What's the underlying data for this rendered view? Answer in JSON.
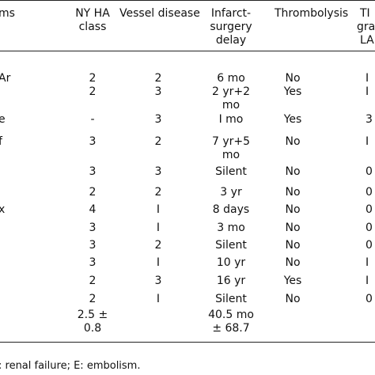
{
  "header": {
    "col0": "ms",
    "col1": [
      "NY HA",
      "class"
    ],
    "col2": "Vessel disease",
    "col3": [
      "Infarct-",
      "surgery",
      "delay"
    ],
    "col4": "Thrombolysis",
    "col5": [
      "TI",
      "gra",
      "LA"
    ]
  },
  "rows": [
    {
      "c0": "Ar",
      "c1": "2",
      "c2": "2",
      "c3": [
        "6 mo"
      ],
      "c4": "No",
      "c5": "I"
    },
    {
      "c0": "",
      "c1": "2",
      "c2": "3",
      "c3": [
        "2 yr+2",
        "mo"
      ],
      "c4": "Yes",
      "c5": "I"
    },
    {
      "c0": "e",
      "c1": "-",
      "c2": "3",
      "c3": [
        "I mo"
      ],
      "c4": "Yes",
      "c5": "3"
    },
    {
      "c0": "f",
      "c1": "3",
      "c2": "2",
      "c3": [
        "7 yr+5",
        "mo"
      ],
      "c4": "No",
      "c5": "I"
    },
    {
      "c0": "",
      "c1": "3",
      "c2": "3",
      "c3": [
        "Silent"
      ],
      "c4": "No",
      "c5": "0"
    },
    {
      "c0": "",
      "c1": "2",
      "c2": "2",
      "c3": [
        "3 yr"
      ],
      "c4": "No",
      "c5": "0"
    },
    {
      "c0": "x",
      "c1": "4",
      "c2": "I",
      "c3": [
        "8 days"
      ],
      "c4": "No",
      "c5": "0"
    },
    {
      "c0": "",
      "c1": "3",
      "c2": "I",
      "c3": [
        "3 mo"
      ],
      "c4": "No",
      "c5": "0"
    },
    {
      "c0": "",
      "c1": "3",
      "c2": "2",
      "c3": [
        "Silent"
      ],
      "c4": "No",
      "c5": "0"
    },
    {
      "c0": "",
      "c1": "3",
      "c2": "I",
      "c3": [
        "10 yr"
      ],
      "c4": "No",
      "c5": "I"
    },
    {
      "c0": "",
      "c1": "2",
      "c2": "3",
      "c3": [
        "16 yr"
      ],
      "c4": "Yes",
      "c5": "I"
    },
    {
      "c0": "",
      "c1": "2",
      "c2": "I",
      "c3": [
        "Silent"
      ],
      "c4": "No",
      "c5": "0"
    }
  ],
  "summary": {
    "c1": [
      "2.5 ±",
      "0.8"
    ],
    "c3": [
      "40.5 mo",
      "± 68.7"
    ]
  },
  "footnote": ": renal failure; E: embolism."
}
